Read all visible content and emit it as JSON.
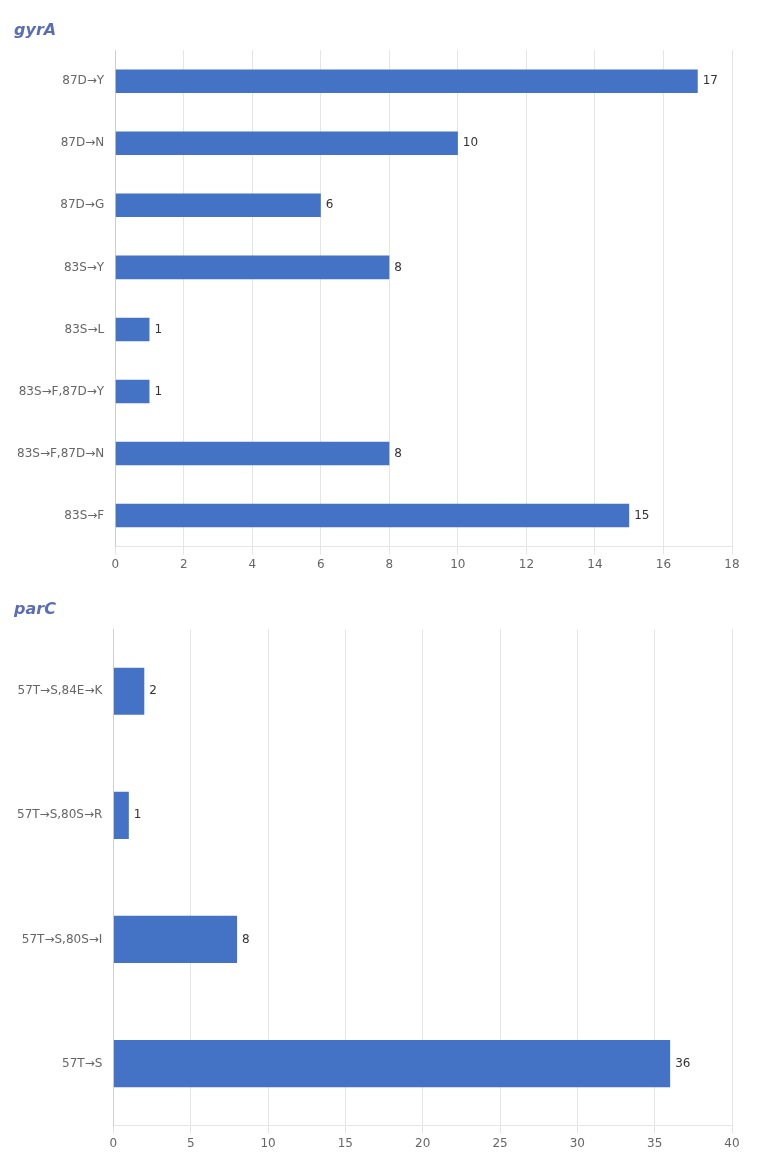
{
  "chart_data": [
    {
      "type": "bar",
      "orientation": "horizontal",
      "title": "gyrA",
      "categories": [
        "87D→Y",
        "87D→N",
        "87D→G",
        "83S→Y",
        "83S→L",
        "83S→F,87D→Y",
        "83S→F,87D→N",
        "83S→F"
      ],
      "values": [
        17,
        10,
        6,
        8,
        1,
        1,
        8,
        15
      ],
      "color": "#4472C4",
      "xlim": [
        0,
        18
      ],
      "xticks": [
        0,
        2,
        4,
        6,
        8,
        10,
        12,
        14,
        16,
        18
      ],
      "grid": true,
      "data_labels": true
    },
    {
      "type": "bar",
      "orientation": "horizontal",
      "title": "parC",
      "categories": [
        "57T→S,84E→K",
        "57T→S,80S→R",
        "57T→S,80S→I",
        "57T→S"
      ],
      "values": [
        2,
        1,
        8,
        36
      ],
      "color": "#4472C4",
      "xlim": [
        0,
        40
      ],
      "xticks": [
        0,
        5,
        10,
        15,
        20,
        25,
        30,
        35,
        40
      ],
      "grid": true,
      "data_labels": true
    }
  ]
}
